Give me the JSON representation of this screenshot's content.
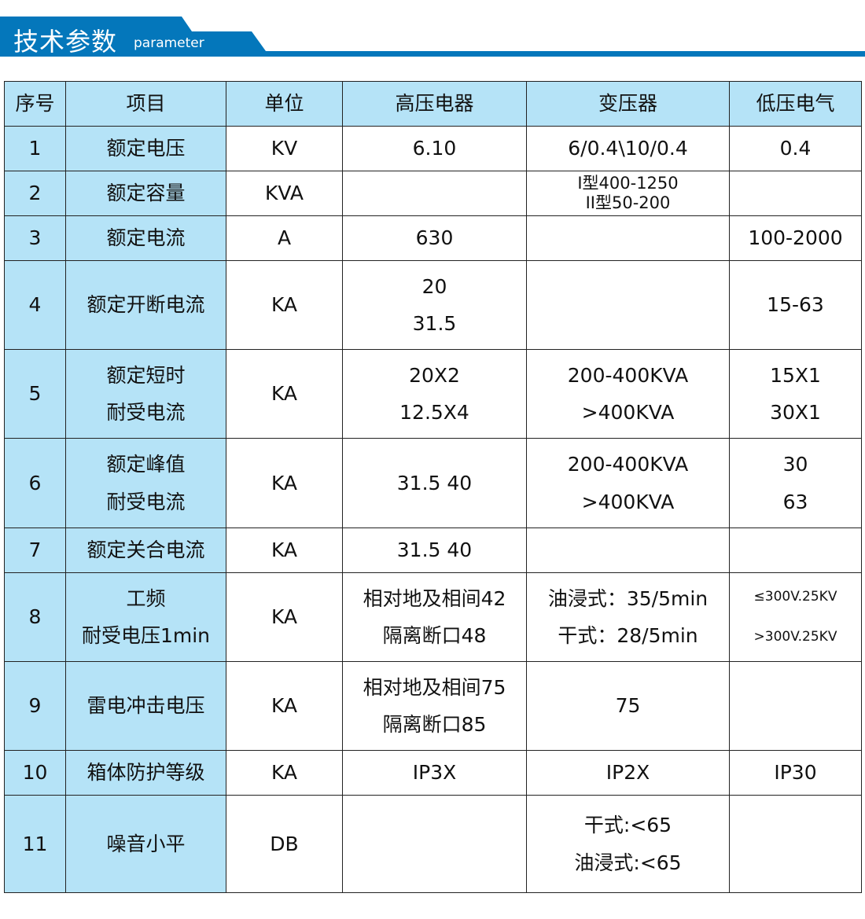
{
  "header": {
    "title": "技术参数",
    "subtitle": "parameter",
    "color": "#0477bb"
  },
  "table": {
    "columns": [
      "序号",
      "项目",
      "单位",
      "高压电器",
      "变压器",
      "低压电气"
    ],
    "rows": [
      {
        "no": "1",
        "item": "额定电压",
        "unit": "KV",
        "hv": "6.10",
        "tr": "6/0.4\\10/0.4",
        "lv": "0.4"
      },
      {
        "no": "2",
        "item": "额定容量",
        "unit": "KVA",
        "hv": "",
        "tr": "I型400-1250\nII型50-200",
        "lv": ""
      },
      {
        "no": "3",
        "item": "额定电流",
        "unit": "A",
        "hv": "630",
        "tr": "",
        "lv": "100-2000"
      },
      {
        "no": "4",
        "item": "额定开断电流",
        "unit": "KA",
        "hv": "20\n31.5",
        "tr": "",
        "lv": "15-63"
      },
      {
        "no": "5",
        "item": "额定短时\n耐受电流",
        "unit": "KA",
        "hv": "20X2\n12.5X4",
        "tr": "200-400KVA\n>400KVA",
        "lv": "15X1\n30X1"
      },
      {
        "no": "6",
        "item": "额定峰值\n耐受电流",
        "unit": "KA",
        "hv": "31.5   40",
        "tr": "200-400KVA\n>400KVA",
        "lv": "30\n63"
      },
      {
        "no": "7",
        "item": "额定关合电流",
        "unit": "KA",
        "hv": "31.5   40",
        "tr": "",
        "lv": ""
      },
      {
        "no": "8",
        "item": "工频\n耐受电压1min",
        "unit": "KA",
        "hv": "相对地及相间42\n隔离断口48",
        "tr": "油浸式：35/5min\n干式：28/5min",
        "lv": "≤300V.25KV\n>300V.25KV"
      },
      {
        "no": "9",
        "item": "雷电冲击电压",
        "unit": "KA",
        "hv": "相对地及相间75\n隔离断口85",
        "tr": "75",
        "lv": ""
      },
      {
        "no": "10",
        "item": "箱体防护等级",
        "unit": "KA",
        "hv": "IP3X",
        "tr": "IP2X",
        "lv": "IP30"
      },
      {
        "no": "11",
        "item": "噪音小平",
        "unit": "DB",
        "hv": "",
        "tr": "干式:<65\n油浸式:<65",
        "lv": ""
      }
    ]
  }
}
